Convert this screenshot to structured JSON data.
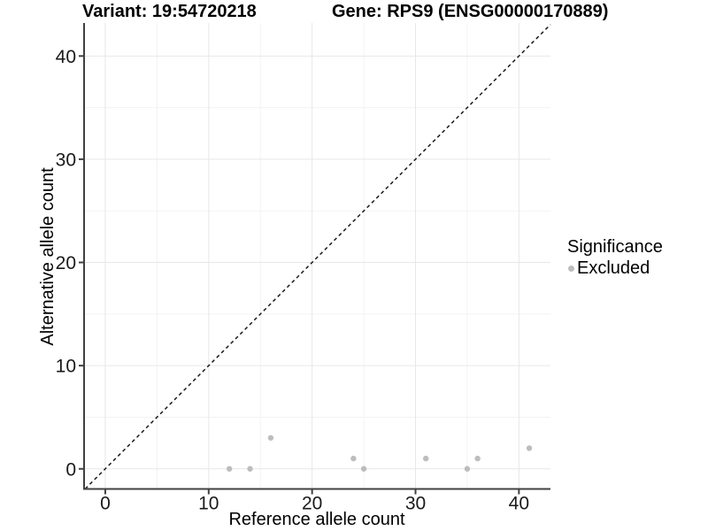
{
  "chart_data": {
    "type": "scatter",
    "title_left": "Variant: 19:54720218",
    "title_right": "Gene: RPS9 (ENSG00000170889)",
    "xlabel": "Reference allele count",
    "ylabel": "Alternative allele count",
    "x_ticks": [
      0,
      10,
      20,
      30,
      40
    ],
    "y_ticks": [
      0,
      10,
      20,
      30,
      40
    ],
    "x_minor_gridlines": [
      5,
      15,
      25,
      35
    ],
    "y_minor_gridlines": [
      5,
      15,
      25,
      35
    ],
    "xlim": [
      -2.05,
      43.05
    ],
    "ylim": [
      -1.95,
      43.2
    ],
    "grid": "major+minor",
    "reference_line": {
      "type": "identity y=x",
      "style": "dashed",
      "color": "#1a1a1a"
    },
    "series": [
      {
        "name": "Excluded",
        "color": "#bdbdbd",
        "marker": "circle",
        "points": [
          {
            "x": 12,
            "y": 0
          },
          {
            "x": 14,
            "y": 0
          },
          {
            "x": 16,
            "y": 3
          },
          {
            "x": 24,
            "y": 1
          },
          {
            "x": 25,
            "y": 0
          },
          {
            "x": 31,
            "y": 1
          },
          {
            "x": 35,
            "y": 0
          },
          {
            "x": 36,
            "y": 1
          },
          {
            "x": 41,
            "y": 2
          }
        ]
      }
    ],
    "legend": {
      "title": "Significance",
      "position": "right-middle",
      "entries": [
        {
          "label": "Excluded",
          "color": "#bdbdbd"
        }
      ]
    }
  },
  "colors": {
    "background": "#ffffff",
    "grid_major": "#e7e7e7",
    "grid_minor": "#f3f3f3",
    "axis_line": "#404040",
    "tick_label": "#1a1a1a",
    "point": "#bdbdbd",
    "reference_line": "#1a1a1a"
  }
}
